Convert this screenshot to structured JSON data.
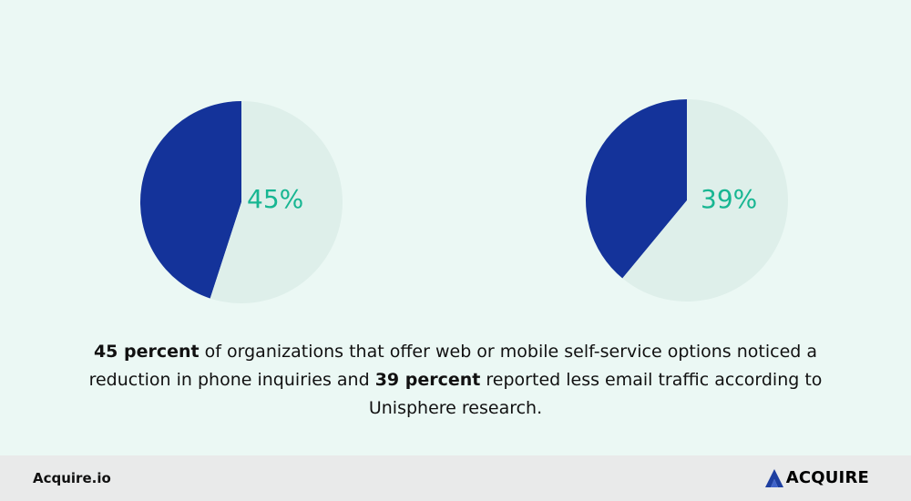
{
  "colors": {
    "background": "#ebf8f4",
    "filled_slice": "#14339a",
    "remaining_slice": "#deefea",
    "percent_label": "#17b692",
    "footer_background": "#e9eaea",
    "logo_accent": "#1e3fa0"
  },
  "chart_data": [
    {
      "type": "pie",
      "values": [
        45,
        55
      ],
      "label": "45%",
      "title": "",
      "slice_colors": [
        "#14339a",
        "#deefea"
      ],
      "start_angle_deg": 0,
      "direction": "counterclockwise"
    },
    {
      "type": "pie",
      "values": [
        39,
        61
      ],
      "label": "39%",
      "title": "",
      "slice_colors": [
        "#14339a",
        "#deefea"
      ],
      "start_angle_deg": 0,
      "direction": "counterclockwise"
    }
  ],
  "caption": {
    "bold_1": "45 percent",
    "text_1": " of organizations that offer web or mobile self-service options noticed a reduction in phone inquiries and ",
    "bold_2": "39 percent",
    "text_2": " reported less email traffic according to Unisphere research."
  },
  "footer": {
    "site": "Acquire.io",
    "logo_text": "ACQUIRE",
    "logo_icon": "acquire-logo-icon"
  }
}
